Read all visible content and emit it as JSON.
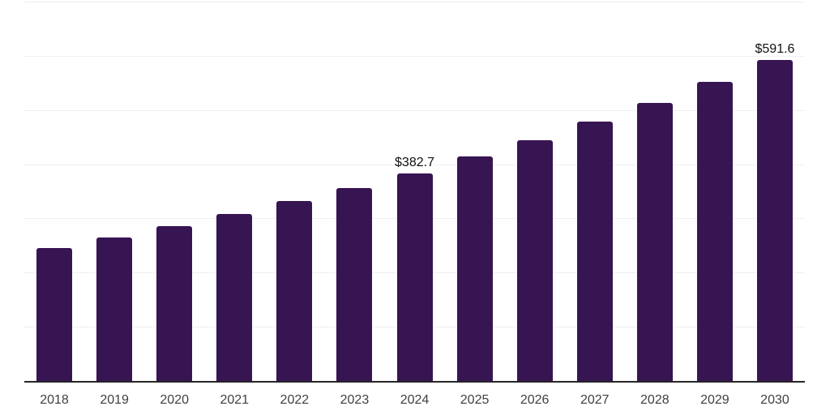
{
  "chart_data": {
    "type": "bar",
    "title": "",
    "xlabel": "",
    "ylabel": "",
    "categories": [
      "2018",
      "2019",
      "2020",
      "2021",
      "2022",
      "2023",
      "2024",
      "2025",
      "2026",
      "2027",
      "2028",
      "2029",
      "2030"
    ],
    "values": [
      245.1,
      264.6,
      285.5,
      307.9,
      331.4,
      355.3,
      382.7,
      414.5,
      444.4,
      478.8,
      512.7,
      552.6,
      591.6
    ],
    "value_labels": {
      "2024": "$382.7",
      "2030": "$591.6"
    },
    "ylim": [
      0,
      700
    ],
    "grid_step": 100,
    "grid": "horizontal",
    "legend": "none",
    "colors": {
      "bar": "#371452",
      "gridline": "#efefef",
      "axis_line": "#262626",
      "tick_label": "#404040",
      "value_label": "#111111",
      "background": "#ffffff"
    }
  }
}
